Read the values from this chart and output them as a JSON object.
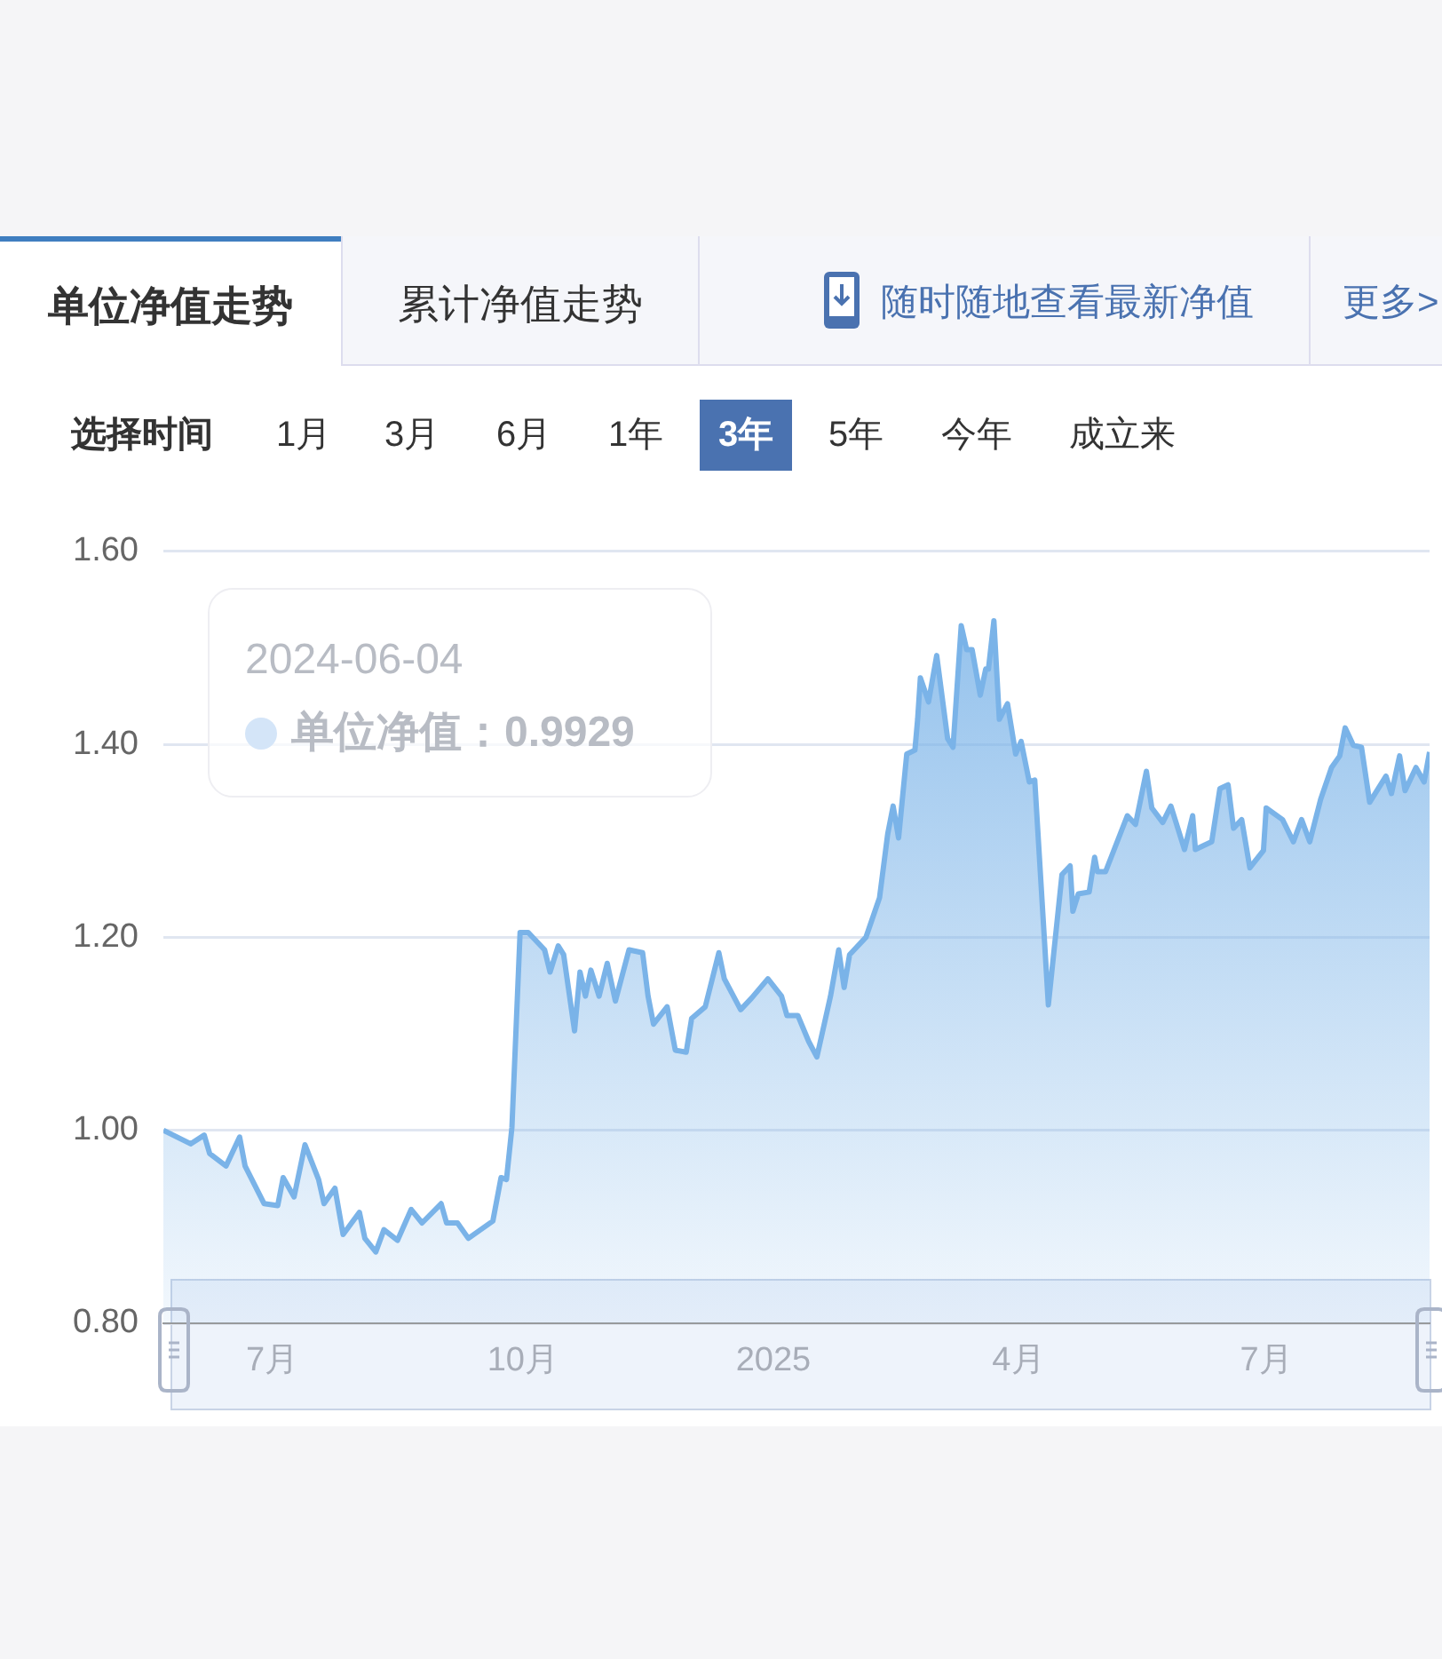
{
  "chart_data": {
    "type": "area",
    "x": [
      "2024-05-22",
      "2024-06-01",
      "2024-06-06",
      "2024-06-08",
      "2024-06-14",
      "2024-06-19",
      "2024-06-21",
      "2024-06-28",
      "2024-07-03",
      "2024-07-05",
      "2024-07-09",
      "2024-07-13",
      "2024-07-18",
      "2024-07-20",
      "2024-07-24",
      "2024-07-27",
      "2024-08-02",
      "2024-08-04",
      "2024-08-08",
      "2024-08-11",
      "2024-08-16",
      "2024-08-21",
      "2024-08-25",
      "2024-09-01",
      "2024-09-03",
      "2024-09-07",
      "2024-09-11",
      "2024-09-20",
      "2024-09-23",
      "2024-09-25",
      "2024-09-27",
      "2024-09-30",
      "2024-10-03",
      "2024-10-09",
      "2024-10-11",
      "2024-10-14",
      "2024-10-16",
      "2024-10-20",
      "2024-10-22",
      "2024-10-24",
      "2024-10-26",
      "2024-10-29",
      "2024-11-01",
      "2024-11-04",
      "2024-11-09",
      "2024-11-14",
      "2024-11-16",
      "2024-11-18",
      "2024-11-23",
      "2024-11-26",
      "2024-11-30",
      "2024-12-02",
      "2024-12-07",
      "2024-12-12",
      "2024-12-14",
      "2024-12-20",
      "2024-12-24",
      "2024-12-30",
      "2025-01-04",
      "2025-01-06",
      "2025-01-10",
      "2025-01-14",
      "2025-01-17",
      "2025-01-22",
      "2025-01-25",
      "2025-01-27",
      "2025-01-29",
      "2025-02-04",
      "2025-02-09",
      "2025-02-12",
      "2025-02-14",
      "2025-02-16",
      "2025-02-19",
      "2025-02-22",
      "2025-02-23",
      "2025-02-24",
      "2025-02-27",
      "2025-03-02",
      "2025-03-06",
      "2025-03-08",
      "2025-03-11",
      "2025-03-13",
      "2025-03-15",
      "2025-03-18",
      "2025-03-20",
      "2025-03-21",
      "2025-03-23",
      "2025-03-25",
      "2025-03-28",
      "2025-03-31",
      "2025-04-02",
      "2025-04-05",
      "2025-04-07",
      "2025-04-12",
      "2025-04-17",
      "2025-04-20",
      "2025-04-21",
      "2025-04-23",
      "2025-04-27",
      "2025-04-29",
      "2025-04-30",
      "2025-05-03",
      "2025-05-11",
      "2025-05-14",
      "2025-05-18",
      "2025-05-20",
      "2025-05-24",
      "2025-05-27",
      "2025-06-01",
      "2025-06-04",
      "2025-06-05",
      "2025-06-11",
      "2025-06-14",
      "2025-06-17",
      "2025-06-19",
      "2025-06-22",
      "2025-06-25",
      "2025-06-30",
      "2025-07-01",
      "2025-07-07",
      "2025-07-11",
      "2025-07-14",
      "2025-07-17",
      "2025-07-21",
      "2025-07-25",
      "2025-07-28",
      "2025-07-30",
      "2025-08-02",
      "2025-08-05",
      "2025-08-08",
      "2025-08-14",
      "2025-08-16",
      "2025-08-19",
      "2025-08-21",
      "2025-08-25",
      "2025-08-28",
      "2025-08-30"
    ],
    "series": [
      {
        "color": "#7ab3e8",
        "values": [
          1.0,
          0.986,
          0.995,
          0.976,
          0.963,
          0.993,
          0.963,
          0.924,
          0.922,
          0.951,
          0.931,
          0.985,
          0.949,
          0.924,
          0.94,
          0.892,
          0.915,
          0.888,
          0.874,
          0.897,
          0.886,
          0.918,
          0.904,
          0.924,
          0.904,
          0.904,
          0.888,
          0.906,
          0.951,
          0.949,
          1.003,
          1.205,
          1.205,
          1.187,
          1.164,
          1.191,
          1.182,
          1.103,
          1.164,
          1.139,
          1.166,
          1.139,
          1.173,
          1.134,
          1.187,
          1.184,
          1.139,
          1.11,
          1.128,
          1.083,
          1.081,
          1.116,
          1.128,
          1.184,
          1.157,
          1.125,
          1.137,
          1.157,
          1.139,
          1.119,
          1.119,
          1.092,
          1.076,
          1.139,
          1.187,
          1.148,
          1.182,
          1.2,
          1.241,
          1.307,
          1.336,
          1.303,
          1.39,
          1.394,
          1.426,
          1.469,
          1.444,
          1.492,
          1.406,
          1.397,
          1.523,
          1.498,
          1.498,
          1.451,
          1.478,
          1.478,
          1.528,
          1.426,
          1.442,
          1.39,
          1.403,
          1.361,
          1.363,
          1.13,
          1.265,
          1.274,
          1.227,
          1.245,
          1.247,
          1.283,
          1.268,
          1.268,
          1.326,
          1.317,
          1.372,
          1.334,
          1.319,
          1.336,
          1.291,
          1.326,
          1.291,
          1.299,
          1.354,
          1.358,
          1.313,
          1.322,
          1.272,
          1.29,
          1.334,
          1.322,
          1.299,
          1.322,
          1.299,
          1.343,
          1.376,
          1.388,
          1.417,
          1.399,
          1.397,
          1.34,
          1.367,
          1.349,
          1.388,
          1.352,
          1.376,
          1.361,
          1.392
        ]
      }
    ],
    "xlim": [
      "2024-05-22",
      "2025-08-30"
    ],
    "xticks": [
      {
        "value": "2024-07-01",
        "label": "7月"
      },
      {
        "value": "2024-10-01",
        "label": "10月"
      },
      {
        "value": "2025-01-01",
        "label": "2025"
      },
      {
        "value": "2025-04-01",
        "label": "4月"
      },
      {
        "value": "2025-07-01",
        "label": "7月"
      }
    ],
    "ylim": [
      0.8,
      1.6
    ],
    "yticks": [
      {
        "value": 0.8,
        "label": "0.80"
      },
      {
        "value": 1.0,
        "label": "1.00"
      },
      {
        "value": 1.2,
        "label": "1.20"
      },
      {
        "value": 1.4,
        "label": "1.40"
      },
      {
        "value": 1.6,
        "label": "1.60"
      }
    ],
    "grid": "y",
    "legend": false,
    "marker": "none",
    "line_style": "solid",
    "annotations": [
      "单位净值走势",
      "累计净值走势",
      "随时随地查看最新净值",
      "更多>",
      "选择时间",
      "1月",
      "3月",
      "6月",
      "1年",
      "3年",
      "5年",
      "今年",
      "成立来",
      "2024-06-04",
      "单位净值：0.9929"
    ]
  }
}
